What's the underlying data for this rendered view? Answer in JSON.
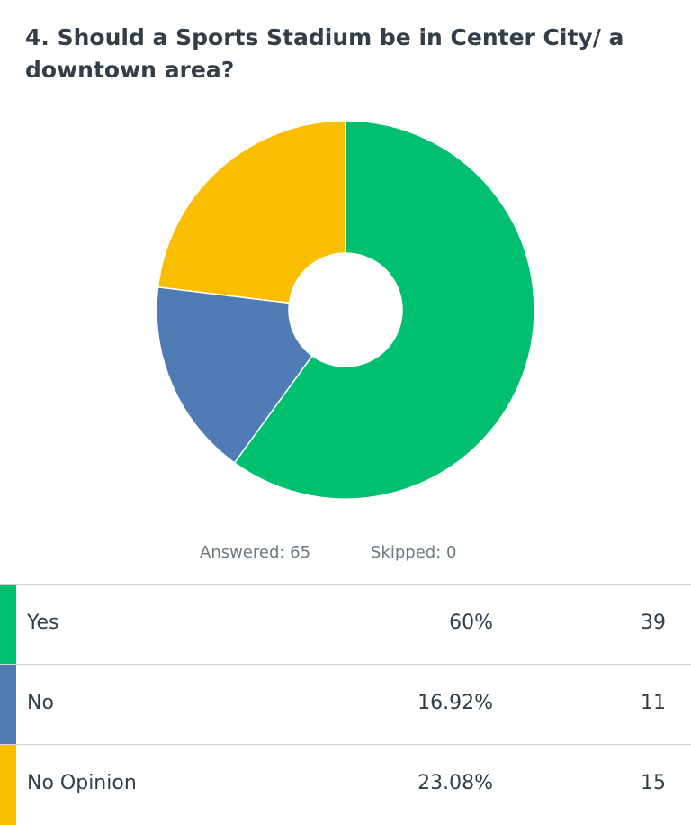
{
  "chart_data": {
    "type": "pie",
    "title": "4. Should a Sports Stadium be in Center City/ a downtown area?",
    "categories": [
      "Yes",
      "No",
      "No Opinion"
    ],
    "values": [
      60,
      16.92,
      23.08
    ],
    "value_labels": [
      "60%",
      "16.92%",
      "23.08%"
    ],
    "counts": [
      39,
      11,
      15
    ],
    "colors": [
      "#00bf6f",
      "#507cb6",
      "#f9be00"
    ],
    "donut": true,
    "answered": "Answered: 65",
    "skipped": "Skipped: 0"
  }
}
